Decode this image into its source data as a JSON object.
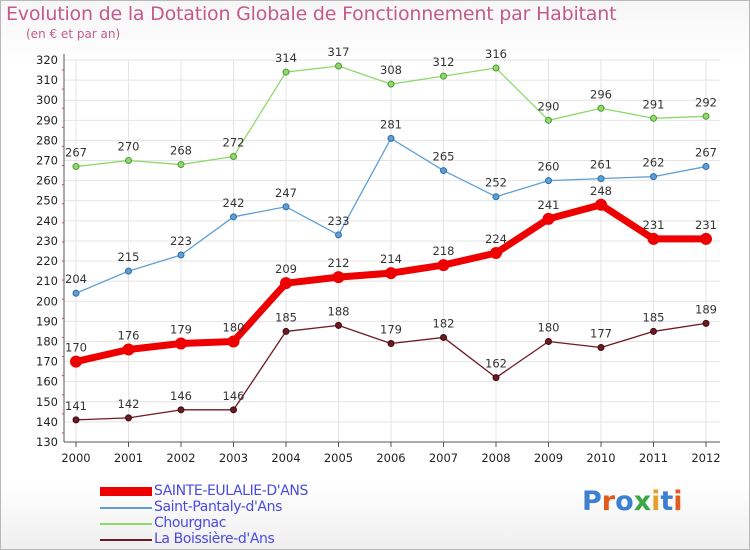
{
  "title": "Evolution de la Dotation Globale de Fonctionnement par Habitant",
  "subtitle": "(en € et par an)",
  "logo": {
    "text": "Proxiti",
    "letters": [
      "P",
      "r",
      "o",
      "x",
      "i",
      "t",
      "i"
    ],
    "colors": [
      "#3d7fd0",
      "#e25a1c",
      "#3d7fd0",
      "#39a845",
      "#e2a02c",
      "#3d7fd0",
      "#e25a1c"
    ]
  },
  "chart_data": {
    "type": "line",
    "title": "Evolution de la Dotation Globale de Fonctionnement par Habitant",
    "ylabel": "(en € et par an)",
    "x": [
      "2000",
      "2001",
      "2002",
      "2003",
      "2004",
      "2005",
      "2006",
      "2007",
      "2008",
      "2009",
      "2010",
      "2011",
      "2012"
    ],
    "ylim": [
      130,
      320
    ],
    "yticks": [
      130,
      140,
      150,
      160,
      170,
      180,
      190,
      200,
      210,
      220,
      230,
      240,
      250,
      260,
      270,
      280,
      290,
      300,
      310,
      320
    ],
    "series": [
      {
        "name": "La Boissière-d'Ans",
        "color": "#6e1a22",
        "values": [
          141,
          142,
          146,
          146,
          185,
          188,
          179,
          182,
          162,
          180,
          177,
          185,
          189
        ]
      },
      {
        "name": "Saint-Pantaly-d'Ans",
        "color": "#5f9fd4",
        "values": [
          204,
          215,
          223,
          242,
          247,
          233,
          281,
          265,
          252,
          260,
          261,
          262,
          267
        ]
      },
      {
        "name": "Chourgnac",
        "color": "#8ed86c",
        "values": [
          267,
          270,
          268,
          272,
          314,
          317,
          308,
          312,
          316,
          290,
          296,
          291,
          292
        ]
      },
      {
        "name": "SAINTE-EULALIE-D'ANS",
        "color": "#ee0000",
        "values": [
          170,
          176,
          179,
          180,
          209,
          212,
          214,
          218,
          224,
          241,
          248,
          231,
          231
        ]
      }
    ],
    "legend": [
      "SAINTE-EULALIE-D'ANS",
      "Saint-Pantaly-d'Ans",
      "Chourgnac",
      "La Boissière-d'Ans"
    ]
  }
}
